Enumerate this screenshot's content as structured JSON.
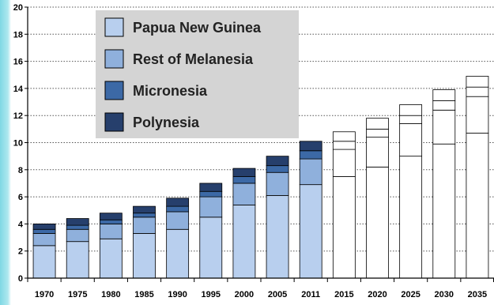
{
  "chart_data": {
    "type": "bar",
    "stacked": true,
    "categories": [
      "1970",
      "1975",
      "1980",
      "1985",
      "1990",
      "1995",
      "2000",
      "2005",
      "2011",
      "2015",
      "2020",
      "2025",
      "2030",
      "2035"
    ],
    "projected_from_index": 9,
    "ylim": [
      0,
      20
    ],
    "yticks": [
      0,
      2,
      4,
      6,
      8,
      10,
      12,
      14,
      16,
      18,
      20
    ],
    "ytick_labels": [
      "0",
      "2",
      "4",
      "6",
      "8",
      "10",
      "12",
      "14",
      "16",
      "18",
      "20"
    ],
    "grid": "horizontal-dotted",
    "legend_position": "top-left",
    "series": [
      {
        "name": "Papua New Guinea",
        "color": "#b8cfee",
        "values": [
          2.4,
          2.7,
          2.9,
          3.3,
          3.6,
          4.5,
          5.4,
          6.1,
          6.9,
          7.5,
          8.2,
          9.0,
          9.9,
          10.7
        ]
      },
      {
        "name": "Rest of Melanesia",
        "color": "#8fb0dc",
        "values": [
          0.9,
          0.9,
          1.1,
          1.2,
          1.3,
          1.5,
          1.6,
          1.7,
          1.9,
          2.0,
          2.2,
          2.4,
          2.5,
          2.7
        ]
      },
      {
        "name": "Micronesia",
        "color": "#3c69a6",
        "values": [
          0.3,
          0.3,
          0.3,
          0.3,
          0.4,
          0.4,
          0.5,
          0.5,
          0.6,
          0.6,
          0.6,
          0.6,
          0.7,
          0.7
        ]
      },
      {
        "name": "Polynesia",
        "color": "#263f6c",
        "values": [
          0.4,
          0.5,
          0.5,
          0.5,
          0.6,
          0.6,
          0.6,
          0.7,
          0.7,
          0.7,
          0.8,
          0.8,
          0.8,
          0.8
        ]
      }
    ]
  }
}
